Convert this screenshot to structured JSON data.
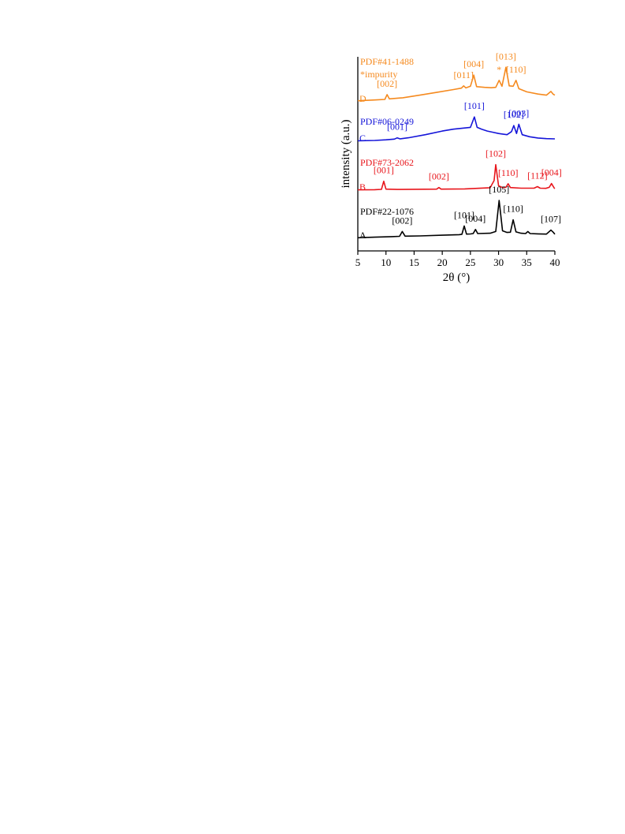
{
  "chart_data": {
    "type": "line",
    "xlabel": "2θ (°)",
    "ylabel": "intensity (a.u.)",
    "xlim": [
      5,
      40
    ],
    "xticks": [
      5,
      10,
      15,
      20,
      25,
      30,
      35,
      40
    ],
    "xtick_labels": [
      "5",
      "10",
      "15",
      "20",
      "25",
      "30",
      "35",
      "40"
    ],
    "grid": false,
    "legend": "none",
    "series": [
      {
        "key": "A",
        "color": "#000000",
        "pdf_card": "PDF#22-1076",
        "x": [
          5,
          8,
          11,
          12.4,
          12.9,
          13.4,
          16,
          20,
          23,
          23.5,
          23.9,
          24.3,
          25,
          25.5,
          25.9,
          26.3,
          28.5,
          29.5,
          30.1,
          30.7,
          31.5,
          32.1,
          32.6,
          33.1,
          34,
          34.8,
          35.2,
          35.6,
          37,
          38.5,
          39.3,
          39.7,
          40
        ],
        "values": [
          1,
          1.4,
          1.8,
          2,
          5.5,
          2.1,
          2.3,
          2.8,
          3.2,
          3.5,
          9.5,
          3.6,
          3.7,
          4,
          7,
          4,
          4.2,
          5.5,
          28,
          6,
          4.8,
          5,
          14,
          5.2,
          4.2,
          4,
          5.5,
          4,
          3.8,
          3.6,
          6.5,
          5,
          3.5
        ]
      },
      {
        "key": "B",
        "color": "#e8151b",
        "pdf_card": "PDF#73-2062",
        "x": [
          5,
          8,
          9.2,
          9.6,
          10,
          12,
          17,
          19,
          19.4,
          19.8,
          24,
          28.5,
          29.2,
          29.5,
          30,
          30.7,
          31.3,
          31.7,
          32.1,
          34,
          36.3,
          36.9,
          37.4,
          38.4,
          39,
          39.4,
          39.9,
          40
        ],
        "values": [
          1,
          1.1,
          1.4,
          8.5,
          1.6,
          1.3,
          1.5,
          1.6,
          3,
          1.6,
          1.8,
          2.8,
          9,
          23,
          4.5,
          3,
          3.2,
          6.3,
          3,
          2.4,
          2.4,
          3.8,
          2.4,
          2.3,
          3.2,
          6.5,
          2.4,
          2.1
        ]
      },
      {
        "key": "C",
        "color": "#1515d9",
        "pdf_card": "PDF#06-0249",
        "x": [
          5,
          8,
          10,
          11.5,
          12,
          12.5,
          14,
          17,
          20,
          22,
          24,
          25,
          25.7,
          26.2,
          27,
          28,
          29,
          30,
          31.5,
          32.3,
          32.7,
          33.2,
          33.6,
          34.2,
          35.5,
          37,
          38.5,
          40
        ],
        "values": [
          1,
          1.3,
          1.8,
          2.4,
          3.4,
          2.6,
          3.5,
          6,
          9,
          10.5,
          11.5,
          12,
          20.5,
          12,
          10.5,
          9,
          8,
          7,
          6,
          8.5,
          13.5,
          7,
          14.5,
          6,
          4.3,
          3.3,
          2.8,
          2.6
        ]
      },
      {
        "key": "D",
        "color": "#f58a1f",
        "pdf_card": "PDF#41-1488",
        "x": [
          5,
          8,
          9.8,
          10.2,
          10.6,
          13,
          16,
          19,
          22,
          23.4,
          23.8,
          24.2,
          25,
          25.6,
          26.1,
          27.5,
          28.7,
          29.5,
          30.1,
          30.6,
          31.3,
          31.9,
          32.6,
          33.1,
          33.6,
          35,
          37,
          38.5,
          39.3,
          39.7,
          40
        ],
        "values": [
          1,
          1.4,
          1.7,
          4.3,
          2,
          2.6,
          4,
          5.5,
          7,
          7.8,
          9,
          7.9,
          8.8,
          14.8,
          8.6,
          8.2,
          8,
          8.2,
          12,
          8.8,
          19,
          9,
          8.8,
          12,
          7.5,
          5.8,
          4.6,
          4,
          6,
          4.5,
          4
        ]
      }
    ],
    "peak_labels": [
      {
        "series": "A",
        "label": "[002]",
        "x": 12.9
      },
      {
        "series": "A",
        "label": "[101]",
        "x": 23.9
      },
      {
        "series": "A",
        "label": "[004]",
        "x": 25.9
      },
      {
        "series": "A",
        "label": "[105]",
        "x": 30.1
      },
      {
        "series": "A",
        "label": "[110]",
        "x": 32.6
      },
      {
        "series": "A",
        "label": "[107]",
        "x": 39.3
      },
      {
        "series": "B",
        "label": "[001]",
        "x": 9.6
      },
      {
        "series": "B",
        "label": "[002]",
        "x": 19.4
      },
      {
        "series": "B",
        "label": "[102]",
        "x": 29.5
      },
      {
        "series": "B",
        "label": "[110]",
        "x": 31.7
      },
      {
        "series": "B",
        "label": "[112]",
        "x": 36.9
      },
      {
        "series": "B",
        "label": "[004]",
        "x": 39.4
      },
      {
        "series": "C",
        "label": "[001]",
        "x": 12.0
      },
      {
        "series": "C",
        "label": "[101]",
        "x": 25.7
      },
      {
        "series": "C",
        "label": "[102]",
        "x": 32.7
      },
      {
        "series": "C",
        "label": "[003]",
        "x": 33.6
      },
      {
        "series": "D",
        "label": "[002]",
        "x": 10.2
      },
      {
        "series": "D",
        "label": "[011]",
        "x": 23.8
      },
      {
        "series": "D",
        "label": "[004]",
        "x": 25.6
      },
      {
        "series": "D",
        "label": "*",
        "x": 30.1
      },
      {
        "series": "D",
        "label": "[013]",
        "x": 31.3
      },
      {
        "series": "D",
        "label": "[110]",
        "x": 33.1
      }
    ],
    "annotations": {
      "D_impurity_note": "*impurity"
    }
  }
}
